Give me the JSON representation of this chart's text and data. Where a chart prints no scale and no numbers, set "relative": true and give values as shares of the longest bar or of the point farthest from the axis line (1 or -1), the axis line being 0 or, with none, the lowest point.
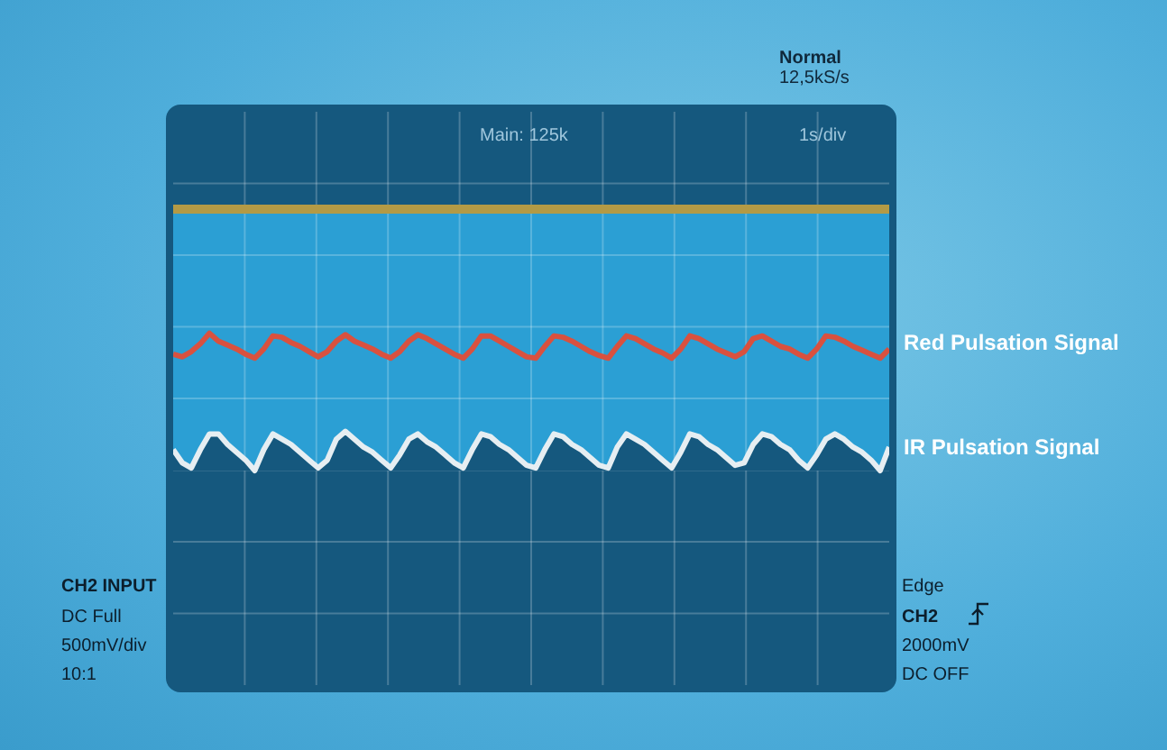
{
  "chart_data": {
    "type": "line",
    "relative": true,
    "grid": true,
    "legend": false,
    "marker": "none",
    "line_style": "solid",
    "annotations": [
      "Main: 125k",
      "1s/div",
      "Normal",
      "12,5kS/s",
      "CH2 INPUT",
      "DC Full",
      "500mV/div",
      "10:1",
      "Edge",
      "CH2",
      "2000mV",
      "DC OFF"
    ],
    "categories": [
      null,
      null,
      null,
      null,
      null,
      null,
      null,
      null,
      null,
      null,
      null,
      null,
      null,
      null,
      null,
      null,
      null,
      null,
      null,
      null,
      null,
      null,
      null,
      null,
      null,
      null,
      null,
      null,
      null,
      null,
      null,
      null,
      null,
      null,
      null,
      null,
      null,
      null,
      null,
      null,
      null,
      null,
      null,
      null,
      null,
      null,
      null,
      null,
      null,
      null,
      null,
      null,
      null,
      null,
      null,
      null,
      null,
      null,
      null,
      null,
      null,
      null,
      null,
      null,
      null,
      null,
      null,
      null,
      null,
      null,
      null,
      null,
      null,
      null,
      null,
      null,
      null,
      null,
      null,
      null
    ],
    "series": [
      {
        "color": "#b39a45",
        "values": [
          1,
          1,
          1,
          1,
          1,
          1,
          1,
          1,
          1,
          1,
          1,
          1,
          1,
          1,
          1,
          1,
          1,
          1,
          1,
          1,
          1,
          1,
          1,
          1,
          1,
          1,
          1,
          1,
          1,
          1,
          1,
          1,
          1,
          1,
          1,
          1,
          1,
          1,
          1,
          1,
          1,
          1,
          1,
          1,
          1,
          1,
          1,
          1,
          1,
          1,
          1,
          1,
          1,
          1,
          1,
          1,
          1,
          1,
          1,
          1,
          1,
          1,
          1,
          1,
          1,
          1,
          1,
          1,
          1,
          1,
          1,
          1,
          1,
          1,
          1,
          1,
          1,
          1,
          1,
          1
        ]
      },
      {
        "name": "Red Pulsation Signal",
        "color": "#d9513f",
        "values": [
          0.445,
          0.435,
          0.455,
          0.485,
          0.525,
          0.495,
          0.48,
          0.465,
          0.445,
          0.43,
          0.465,
          0.515,
          0.51,
          0.49,
          0.475,
          0.455,
          0.435,
          0.455,
          0.495,
          0.52,
          0.495,
          0.48,
          0.465,
          0.445,
          0.43,
          0.455,
          0.495,
          0.52,
          0.505,
          0.485,
          0.465,
          0.445,
          0.43,
          0.465,
          0.515,
          0.515,
          0.495,
          0.475,
          0.455,
          0.435,
          0.43,
          0.475,
          0.515,
          0.51,
          0.495,
          0.475,
          0.455,
          0.44,
          0.43,
          0.475,
          0.515,
          0.505,
          0.485,
          0.465,
          0.45,
          0.43,
          0.465,
          0.515,
          0.505,
          0.485,
          0.465,
          0.45,
          0.435,
          0.455,
          0.505,
          0.515,
          0.495,
          0.475,
          0.465,
          0.445,
          0.43,
          0.465,
          0.515,
          0.51,
          0.495,
          0.475,
          0.46,
          0.445,
          0.43,
          0.465
        ]
      },
      {
        "name": "IR Pulsation Signal",
        "color": "#e6eef2",
        "values": [
          0.08,
          0.03,
          0.01,
          0.08,
          0.14,
          0.14,
          0.1,
          0.07,
          0.04,
          0,
          0.08,
          0.14,
          0.12,
          0.1,
          0.07,
          0.04,
          0.01,
          0.04,
          0.12,
          0.15,
          0.12,
          0.09,
          0.07,
          0.04,
          0.01,
          0.06,
          0.12,
          0.14,
          0.11,
          0.09,
          0.06,
          0.03,
          0.01,
          0.08,
          0.14,
          0.13,
          0.1,
          0.08,
          0.05,
          0.02,
          0.01,
          0.08,
          0.14,
          0.13,
          0.1,
          0.08,
          0.05,
          0.02,
          0.01,
          0.09,
          0.14,
          0.12,
          0.1,
          0.07,
          0.04,
          0.01,
          0.07,
          0.14,
          0.13,
          0.1,
          0.08,
          0.05,
          0.02,
          0.03,
          0.1,
          0.14,
          0.13,
          0.1,
          0.08,
          0.04,
          0.01,
          0.06,
          0.12,
          0.14,
          0.12,
          0.09,
          0.07,
          0.04,
          0,
          0.09
        ]
      }
    ]
  }
}
